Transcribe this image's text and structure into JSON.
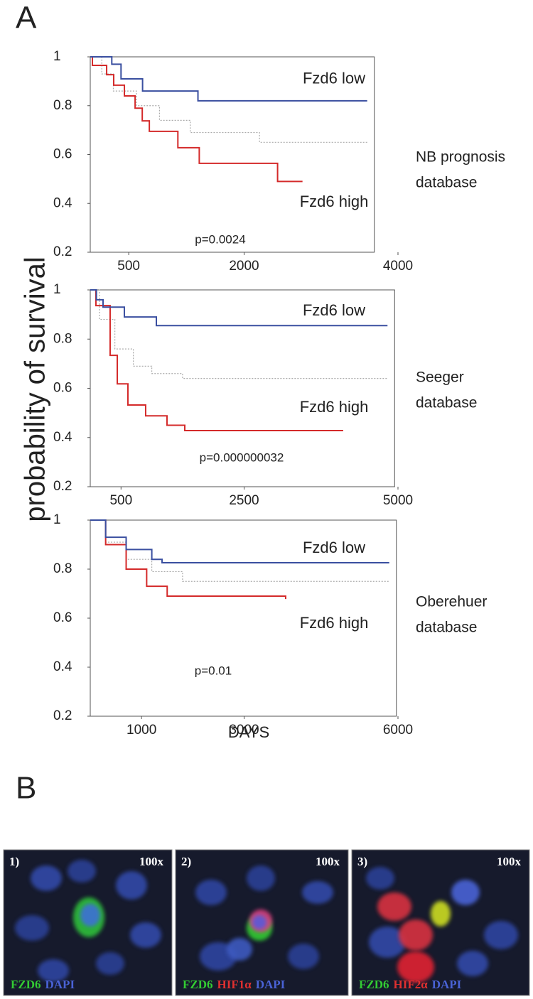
{
  "panel_labels": [
    "A",
    "B"
  ],
  "y_label": "probability of survival",
  "chart_data": [
    {
      "type": "step",
      "xlim": [
        0,
        4000
      ],
      "ylim": [
        0.2,
        1
      ],
      "xticks": [
        500,
        2000,
        4000
      ],
      "yticks": [
        0.2,
        0.4,
        0.6,
        0.8,
        1
      ],
      "annotation": "p=0.0024",
      "side_label": [
        "NB prognosis",
        "database"
      ],
      "series": [
        {
          "name": "Fzd6 low",
          "color": "#3a4fa0",
          "x": [
            0,
            280,
            400,
            680,
            1400,
            3600
          ],
          "values": [
            1,
            0.97,
            0.91,
            0.86,
            0.82,
            0.82
          ]
        },
        {
          "name": "Fzd6 high",
          "color": "#d42a2a",
          "x": [
            0,
            28,
            213,
            305,
            444,
            583,
            676,
            768,
            1139,
            1417,
            2435,
            2759
          ],
          "values": [
            1,
            0.965,
            0.927,
            0.884,
            0.84,
            0.79,
            0.738,
            0.695,
            0.628,
            0.564,
            0.49,
            0.49
          ]
        },
        {
          "color": "#aaaaaa",
          "line_style": "dotted",
          "x": [
            0,
            150,
            300,
            600,
            900,
            1300,
            2200,
            3600
          ],
          "values": [
            1,
            0.93,
            0.86,
            0.8,
            0.74,
            0.69,
            0.65,
            0.65
          ]
        }
      ]
    },
    {
      "type": "step",
      "xlim": [
        0,
        5000
      ],
      "ylim": [
        0.2,
        1
      ],
      "xticks": [
        500,
        2500,
        5000
      ],
      "yticks": [
        0.2,
        0.4,
        0.6,
        0.8,
        1
      ],
      "annotation": "p=0.000000032",
      "side_label": [
        "Seeger",
        "database"
      ],
      "series": [
        {
          "name": "Fzd6 low",
          "color": "#3a4fa0",
          "x": [
            0,
            100,
            208,
            554,
            1074,
            4830
          ],
          "values": [
            1,
            0.96,
            0.93,
            0.89,
            0.855,
            0.855
          ]
        },
        {
          "name": "Fzd6 high",
          "color": "#d42a2a",
          "x": [
            0,
            92,
            323,
            439,
            612,
            900,
            1247,
            1536,
            4110
          ],
          "values": [
            1,
            0.936,
            0.734,
            0.618,
            0.532,
            0.488,
            0.45,
            0.428,
            0.428
          ]
        },
        {
          "color": "#aaaaaa",
          "line_style": "dotted",
          "x": [
            0,
            150,
            400,
            700,
            1000,
            1500,
            4830
          ],
          "values": [
            1,
            0.88,
            0.76,
            0.69,
            0.66,
            0.64,
            0.64
          ]
        }
      ]
    },
    {
      "type": "step",
      "xlim": [
        0,
        6000
      ],
      "ylim": [
        0.2,
        1
      ],
      "xticks": [
        1000,
        3000,
        6000
      ],
      "yticks": [
        0.2,
        0.4,
        0.6,
        0.8,
        1
      ],
      "xlabel": "DAYS",
      "annotation": "p=0.01",
      "side_label": [
        "Oberehuer",
        "database"
      ],
      "series": [
        {
          "name": "Fzd6 low",
          "color": "#3a4fa0",
          "x": [
            0,
            300,
            700,
            1200,
            1400,
            5830
          ],
          "values": [
            1,
            0.93,
            0.88,
            0.84,
            0.826,
            0.826
          ]
        },
        {
          "name": "Fzd6 high",
          "color": "#d42a2a",
          "x": [
            0,
            300,
            700,
            1100,
            1500,
            3810
          ],
          "values": [
            1,
            0.9,
            0.8,
            0.73,
            0.69,
            0.678
          ]
        },
        {
          "color": "#aaaaaa",
          "line_style": "dotted",
          "x": [
            0,
            300,
            700,
            1200,
            1800,
            5830
          ],
          "values": [
            1,
            0.91,
            0.84,
            0.79,
            0.75,
            0.75
          ]
        }
      ]
    }
  ],
  "micrographs": [
    {
      "number": "1)",
      "magnification": "100x",
      "stains": [
        {
          "name": "FZD6",
          "color": "#33cc33"
        },
        {
          "name": "DAPI",
          "color": "#4a63d6"
        }
      ]
    },
    {
      "number": "2)",
      "magnification": "100x",
      "stains": [
        {
          "name": "FZD6",
          "color": "#33cc33"
        },
        {
          "name": "HIF1α",
          "color": "#e03030"
        },
        {
          "name": "DAPI",
          "color": "#4a63d6"
        }
      ]
    },
    {
      "number": "3)",
      "magnification": "100x",
      "stains": [
        {
          "name": "FZD6",
          "color": "#33cc33"
        },
        {
          "name": "HIF2α",
          "color": "#e03030"
        },
        {
          "name": "DAPI",
          "color": "#4a63d6"
        }
      ]
    }
  ]
}
